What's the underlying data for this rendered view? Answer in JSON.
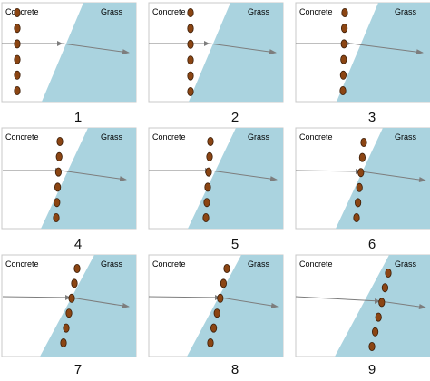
{
  "labels": {
    "concrete": "Concrete",
    "grass": "Grass"
  },
  "colors": {
    "grass_fill": "#aad3df",
    "panel_border": "#c8c8c8",
    "ray": "#7d7d7d",
    "wheel_fill": "#8b4513",
    "wheel_stroke": "#3a1d08"
  },
  "panels": [
    {
      "number": "1"
    },
    {
      "number": "2"
    },
    {
      "number": "3"
    },
    {
      "number": "4"
    },
    {
      "number": "5"
    },
    {
      "number": "6"
    },
    {
      "number": "7"
    },
    {
      "number": "8"
    },
    {
      "number": "9"
    }
  ]
}
